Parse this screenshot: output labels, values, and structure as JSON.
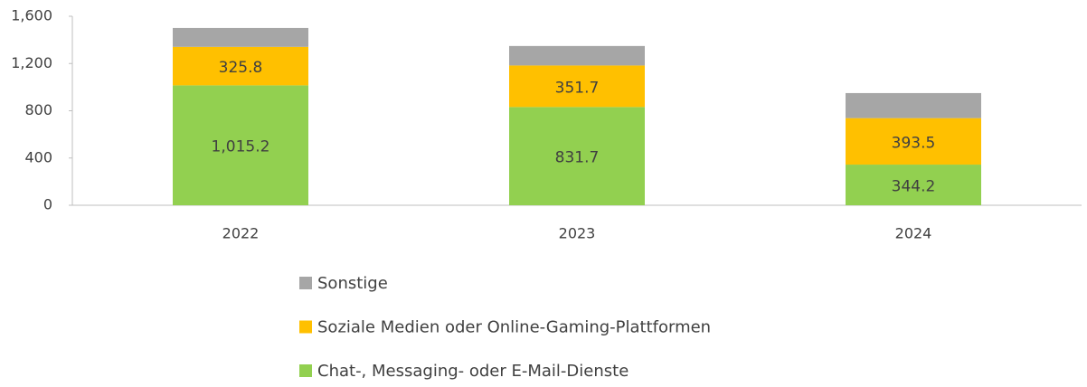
{
  "chart_data": {
    "type": "stacked_bar",
    "categories": [
      "2022",
      "2023",
      "2024"
    ],
    "series": [
      {
        "name": "Chat-, Messaging- oder E-Mail-Dienste",
        "color": "#92d050",
        "values": [
          1015.2,
          831.7,
          344.2
        ],
        "value_labels": [
          "1,015.2",
          "831.7",
          "344.2"
        ]
      },
      {
        "name": "Soziale Medien oder Online-Gaming-Plattformen",
        "color": "#ffc000",
        "values": [
          325.8,
          351.7,
          393.5
        ]
      },
      {
        "name": "Sonstige",
        "color": "#a6a6a6",
        "values": [
          160,
          165,
          212
        ]
      }
    ],
    "ylim": [
      0,
      1600
    ],
    "yticks": [
      0,
      400,
      800,
      {
        "value": 1200,
        "label": "1,200"
      },
      {
        "value": 1600,
        "label": "1,600"
      }
    ],
    "legend": "bottom"
  }
}
